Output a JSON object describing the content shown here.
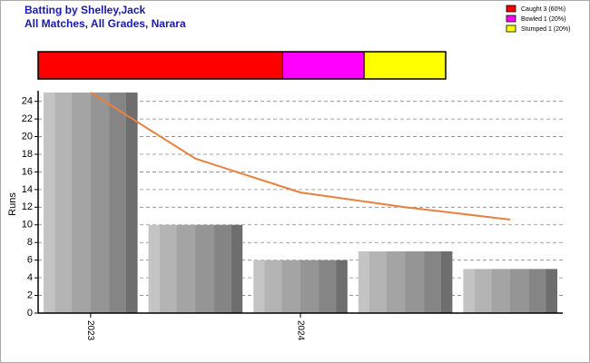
{
  "chart_data": [
    {
      "type": "stacked-bar",
      "title": "Batting by Shelley,Jack",
      "subtitle": "All Matches, All Grades, Narara",
      "series": [
        {
          "name": "Caught 3 (60%)",
          "color": "#ff0000",
          "values": [
            60
          ]
        },
        {
          "name": "Bowled 1 (20%)",
          "color": "#ff00ff",
          "values": [
            20
          ]
        },
        {
          "name": "Stumped 1 (20%)",
          "color": "#ffff00",
          "values": [
            20
          ]
        }
      ]
    },
    {
      "type": "bar",
      "y_label": "Runs",
      "categories": [
        "2023",
        null,
        "2024",
        null,
        null
      ],
      "series": [
        {
          "type": "bar",
          "color": "#999999",
          "values": [
            25,
            10,
            6,
            7,
            5
          ]
        },
        {
          "type": "line",
          "color": "#e8803f",
          "values": [
            25,
            17.5,
            13.67,
            12,
            10.6
          ]
        }
      ],
      "ylim": [
        0,
        25.2
      ],
      "yticks": [
        0,
        2,
        4,
        6,
        8,
        10,
        12,
        14,
        16,
        18,
        20,
        22,
        24
      ],
      "grid": true
    }
  ]
}
